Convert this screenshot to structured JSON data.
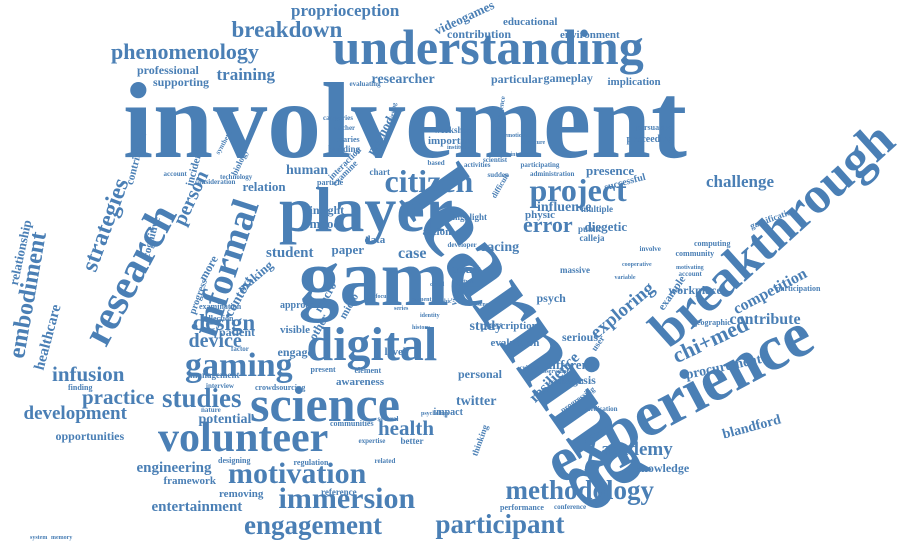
{
  "colors": {
    "text": "#4a7fb5",
    "background": "#ffffff"
  },
  "words": [
    "involvement",
    "learning",
    "game",
    "player",
    "experience",
    "breakthrough",
    "understanding",
    "digital",
    "science",
    "volunteer",
    "research",
    "informal",
    "gaming",
    "citizen",
    "project",
    "motivation",
    "immersion",
    "engagement",
    "participant",
    "methodology",
    "strategies",
    "studies",
    "breakdown",
    "embodiment",
    "phenomenology",
    "proprioception",
    "infusion",
    "practice",
    "development",
    "health",
    "academy",
    "exploring",
    "resilience",
    "error",
    "challenge",
    "competition",
    "contribute",
    "chi+med",
    "procurement",
    "blandford",
    "knowledge",
    "design",
    "device",
    "person",
    "training",
    "influence",
    "diegetic",
    "healthcare",
    "relationship",
    "engineering",
    "entertainment",
    "opportunities",
    "potential",
    "twitter",
    "study",
    "personal",
    "different",
    "diegesis",
    "psych",
    "racing",
    "case",
    "adult",
    "student",
    "paper",
    "mood",
    "insight",
    "human",
    "relation",
    "context",
    "making",
    "patient",
    "engage",
    "visible",
    "macro",
    "micro",
    "level",
    "workplace",
    "serious",
    "professional",
    "supporting",
    "researcher",
    "particular",
    "gameplay",
    "implication",
    "videogames",
    "educational",
    "contribution",
    "environment",
    "evaluating",
    "persuasive",
    "proceeding",
    "gamification",
    "participation",
    "computing",
    "community",
    "involve",
    "important",
    "workshop",
    "method",
    "presence",
    "successful",
    "physic",
    "action",
    "data",
    "user",
    "example",
    "approach",
    "other",
    "more",
    "progress",
    "cognitive",
    "contributor",
    "incidental",
    "finding",
    "interview",
    "crowdsourcing",
    "awareness",
    "element",
    "impact",
    "better",
    "expertise",
    "communities",
    "reference",
    "removing",
    "framework",
    "designing",
    "regulation",
    "performance",
    "conference",
    "medication",
    "progressing",
    "commercial",
    "prescription",
    "evaluation",
    "public",
    "calleja",
    "massive",
    "multiple",
    "critical",
    "highlight",
    "particle",
    "chart",
    "based",
    "diaries",
    "teacher",
    "building",
    "categories",
    "synthetic",
    "technology",
    "consideration",
    "biology",
    "interaction",
    "examine",
    "account",
    "account",
    "convergence",
    "achieving",
    "participating",
    "administration",
    "scientist",
    "activities",
    "institution",
    "difficult",
    "developer",
    "sudden",
    "nature",
    "factor",
    "management",
    "collection",
    "examination",
    "present",
    "several",
    "related",
    "thinking",
    "psychology",
    "observation",
    "geographic",
    "motivating",
    "cooperative",
    "variable",
    "emotional",
    "literature",
    "interest",
    "virtual",
    "graphic",
    "identity",
    "moment",
    "sense",
    "detail",
    "virtual",
    "focus",
    "series",
    "history",
    "system",
    "memory"
  ]
}
